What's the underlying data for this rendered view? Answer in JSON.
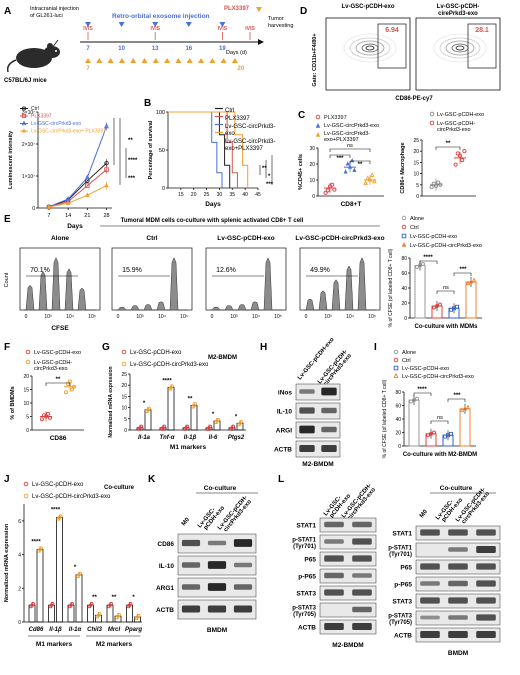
{
  "colors": {
    "ctrl": "#222222",
    "plx": "#d9534f",
    "exo": "#4a6fd6",
    "combo": "#f0a030",
    "red": "#e04040",
    "blue": "#3060d0",
    "gray": "#888888",
    "alone": "#999999",
    "orange": "#f08030"
  },
  "A": {
    "letter": "A",
    "mouse_label": "C57BL/6J mice",
    "injection_label": "Intracranial injection\nof GL261-luci",
    "exo_title": "Retro-orbital exosome injection",
    "plx_label": "PLX3397",
    "tumor_harvest": "Tumor\nharvesting",
    "days_label": "Days (d)",
    "ivis": "IVIS",
    "exo_days": [
      "7",
      "10",
      "13",
      "16",
      "19"
    ],
    "plx_days": [
      "7",
      "20"
    ],
    "chart_data": {
      "type": "line",
      "xlabel": "Days",
      "ylabel": "Luminescent intensity",
      "x": [
        7,
        14,
        21,
        28
      ],
      "xticks": [
        "7",
        "14",
        "21",
        "28"
      ],
      "yticks": [
        "0",
        "1×10⁷",
        "2×10⁷",
        "3×10⁷"
      ],
      "ylim": [
        0,
        30000000
      ],
      "series": [
        {
          "name": "Ctrl",
          "color": "#222222",
          "values": [
            300000,
            2500000,
            8500000,
            14000000
          ]
        },
        {
          "name": "PLX3397",
          "color": "#d9534f",
          "values": [
            300000,
            2000000,
            7000000,
            12000000
          ]
        },
        {
          "name": "Lv-GSC-circPrkd3-exo",
          "color": "#4a6fd6",
          "values": [
            400000,
            2800000,
            9500000,
            25500000
          ]
        },
        {
          "name": "Lv-GSC-circPrkd3-exo+ PLX3397",
          "color": "#f0a030",
          "values": [
            300000,
            1500000,
            4000000,
            7000000
          ]
        }
      ],
      "significance": [
        "**",
        "****",
        "***"
      ]
    }
  },
  "B": {
    "letter": "B",
    "chart_data": {
      "type": "line",
      "xlabel": "Days",
      "ylabel": "Percentage of survival",
      "xticks": [
        "15",
        "20",
        "25",
        "30",
        "35",
        "40",
        "45"
      ],
      "yticks": [
        "0",
        "50",
        "100"
      ],
      "xlim": [
        10,
        45
      ],
      "ylim": [
        0,
        100
      ],
      "series": [
        {
          "name": "Ctrl",
          "color": "#222222",
          "steps": [
            [
              10,
              100
            ],
            [
              30,
              100
            ],
            [
              30,
              70
            ],
            [
              32,
              70
            ],
            [
              32,
              30
            ],
            [
              34,
              30
            ],
            [
              34,
              0
            ]
          ]
        },
        {
          "name": "PLX3397",
          "color": "#d9534f",
          "steps": [
            [
              10,
              100
            ],
            [
              33,
              100
            ],
            [
              33,
              60
            ],
            [
              35,
              60
            ],
            [
              35,
              20
            ],
            [
              37,
              20
            ],
            [
              37,
              0
            ]
          ]
        },
        {
          "name": "Lv-GSC-circPrkd3-exo",
          "color": "#4a6fd6",
          "steps": [
            [
              10,
              100
            ],
            [
              27,
              100
            ],
            [
              27,
              60
            ],
            [
              29,
              60
            ],
            [
              29,
              20
            ],
            [
              31,
              20
            ],
            [
              31,
              0
            ]
          ]
        },
        {
          "name": "Lv-GSC-circPrkd3-exo+PLX3397",
          "color": "#f0a030",
          "steps": [
            [
              10,
              100
            ],
            [
              36,
              100
            ],
            [
              36,
              70
            ],
            [
              39,
              70
            ],
            [
              39,
              30
            ],
            [
              41,
              30
            ],
            [
              41,
              0
            ]
          ]
        }
      ],
      "significance": [
        "**",
        "*",
        "***"
      ]
    }
  },
  "C": {
    "letter": "C",
    "left": {
      "ylabel": "%CD45+ cells",
      "xlabel": "CD8+T",
      "yticks": [
        "0",
        "10",
        "20",
        "30"
      ],
      "ylim": [
        0,
        30
      ],
      "groups": [
        {
          "name": "PLX3397",
          "color": "#e04040",
          "mean": 5
        },
        {
          "name": "Lv-GSC-circPrkd3-exo",
          "color": "#4a6fd6",
          "mean": 18
        },
        {
          "name": "Lv-GSC-circPrkd3-exo+PLX3397",
          "color": "#f0a030",
          "mean": 10
        }
      ],
      "significance": [
        "ns",
        "***",
        "**"
      ]
    },
    "right": {
      "ylabel": "CD86+ Macrophage",
      "yticks": [
        "0",
        "5",
        "10",
        "15",
        "20",
        "25"
      ],
      "ylim": [
        0,
        25
      ],
      "groups": [
        {
          "name": "Lv-GSC-pCDH-exo",
          "color": "#888888",
          "mean": 5
        },
        {
          "name": "Lv-GSC-pCDH-circPrkd3-exo",
          "color": "#e04040",
          "mean": 17
        }
      ],
      "significance": [
        "**"
      ]
    }
  },
  "D": {
    "letter": "D",
    "panel_titles": [
      "Lv-GSC-pCDH-exo",
      "Lv-GSC-pCDH-\ncirePrkd3-exo"
    ],
    "values": [
      "6.94",
      "28.1"
    ],
    "ylabel": "Gate: CD11b+F4/80+",
    "xlabel": "CD86-PE-cy7"
  },
  "E": {
    "letter": "E",
    "header": "Tumoral MDM cells co-culture with splenic activated CD8+ T cell",
    "panels": [
      "Alone",
      "Ctrl",
      "Lv-GSC-pCDH-exo",
      "Lv-GSC-pCDH-circPrkd3-exo"
    ],
    "percents": [
      "70.1%",
      "15.9%",
      "12.6%",
      "49.9%"
    ],
    "ylabel": "Count",
    "xlabel": "CFSE",
    "xticks": [
      "0",
      "10³",
      "10⁴",
      "10⁵"
    ],
    "chart_data": {
      "type": "bar",
      "xlabel": "Co-culture with MDMs",
      "ylabel": "% of CFSE (of labeled CD8+ T cell)",
      "yticks": [
        "0",
        "20",
        "40",
        "60",
        "80"
      ],
      "ylim": [
        0,
        80
      ],
      "categories": [
        "Alone",
        "Ctrl",
        "Lv-GSC-pCDH-exo",
        "Lv-GSC-pCDH-circPrkd3-exo"
      ],
      "values": [
        70,
        16,
        13,
        48
      ],
      "colors": [
        "#999999",
        "#e04040",
        "#3060d0",
        "#f08030"
      ],
      "significance": [
        "****",
        "ns",
        "***"
      ]
    }
  },
  "F": {
    "letter": "F",
    "legend": [
      "Lv-GSC-pCDH-exo",
      "Lv-GSC-pCDH-\ncircPrkd3-exo"
    ],
    "ylabel": "% of BMDMs",
    "xlabel": "CD86",
    "yticks": [
      "0",
      "5",
      "10",
      "15",
      "20"
    ],
    "ylim": [
      0,
      20
    ],
    "groups": [
      {
        "name": "Lv-GSC-pCDH-exo",
        "color": "#e04040",
        "mean": 5
      },
      {
        "name": "Lv-GSC-pCDH-circPrkd3-exo",
        "color": "#f0a030",
        "mean": 16
      }
    ],
    "significance": [
      "**"
    ]
  },
  "G": {
    "letter": "G",
    "legend": [
      "Lv-GSC-pCDH-exo",
      "Lv-GSC-pCDH-circPrkd3-exo"
    ],
    "subtitle": "M2-BMDM",
    "chart_data": {
      "type": "bar",
      "ylabel": "Normalized mRNA expression",
      "xlabel": "M1 markers",
      "categories": [
        "Il-1a",
        "Tnf-α",
        "Il-1β",
        "Il-6",
        "Ptgs2"
      ],
      "yticks": [
        "0",
        "5",
        "10",
        "15",
        "20",
        "25"
      ],
      "ylim": [
        0,
        25
      ],
      "series": [
        {
          "name": "Lv-GSC-pCDH-exo",
          "color": "#e04040",
          "values": [
            1,
            1,
            1,
            1,
            1
          ]
        },
        {
          "name": "Lv-GSC-pCDH-circPrkd3-exo",
          "color": "#f0a030",
          "values": [
            9,
            19,
            11,
            4,
            3
          ]
        }
      ],
      "significance": [
        "*",
        "****",
        "**",
        "*",
        "*"
      ]
    }
  },
  "H": {
    "letter": "H",
    "lanes": [
      "Lv-GSC-pCDH-exo",
      "Lv-GSC-pCDH-circPrkd3-exo"
    ],
    "rows": [
      "iNos",
      "IL-10",
      "ARGI",
      "ACTB"
    ],
    "caption": "M2-BMDM"
  },
  "I": {
    "letter": "I",
    "legend": [
      "Alone",
      "Ctrl",
      "Lv-GSC-pCDH-exo",
      "Lv-GSC-pCDH-circPrkd3-exo"
    ],
    "chart_data": {
      "type": "bar",
      "xlabel": "Co-culture with M2-BMDM",
      "ylabel": "% of CFSE (of labeled CD8+ T cell)",
      "yticks": [
        "0",
        "20",
        "40",
        "60",
        "80"
      ],
      "ylim": [
        0,
        80
      ],
      "categories": [
        "Alone",
        "Ctrl",
        "Lv-GSC-pCDH-exo",
        "Lv-GSC-pCDH-circPrkd3-exo"
      ],
      "values": [
        68,
        18,
        16,
        55
      ],
      "colors": [
        "#999999",
        "#e04040",
        "#3060d0",
        "#f08030"
      ],
      "significance": [
        "****",
        "ns",
        "***"
      ]
    }
  },
  "J": {
    "letter": "J",
    "legend": [
      "Lv-GSC-pCDH-exo",
      "Lv-GSC-pCDH-circPrkd3-exo"
    ],
    "subtitle": "Co-culture",
    "chart_data": {
      "type": "bar",
      "ylabel": "Normalized mRNA expression",
      "categories": [
        "Cd86",
        "Il-1β",
        "Il-1α",
        "Chil3",
        "Mrcl",
        "Pparg"
      ],
      "groups": [
        "M1 markers",
        "M2 markers"
      ],
      "yticks": [
        "0",
        "2",
        "4",
        "6"
      ],
      "ylim": [
        0,
        7
      ],
      "series": [
        {
          "name": "Lv-GSC-pCDH-exo",
          "color": "#e04040",
          "values": [
            1,
            1,
            1,
            1,
            1,
            1
          ]
        },
        {
          "name": "Lv-GSC-pCDH-circPrkd3-exo",
          "color": "#f0a030",
          "values": [
            4.3,
            6.2,
            2.8,
            0.4,
            0.35,
            0.3
          ]
        }
      ],
      "significance": [
        "****",
        "****",
        "*",
        "**",
        "**",
        "*"
      ]
    }
  },
  "K": {
    "letter": "K",
    "header": "Co-culture",
    "lanes": [
      "M0",
      "Lv-GSC-pCDH-exo",
      "Lv-GSC-pCDH-circPrkd3-exo"
    ],
    "rows": [
      "CD86",
      "IL-10",
      "ARG1",
      "ACTB"
    ],
    "caption": "BMDM"
  },
  "L": {
    "letter": "L",
    "left": {
      "lanes": [
        "Lv-GSC-pCDH-exo",
        "Lv-GSC-pCDH-circPrkd3-exo"
      ],
      "rows": [
        "STAT1",
        "p-STAT1 (Tyr701)",
        "P65",
        "p-P65",
        "STAT3",
        "p-STAT3 (Tyr705)",
        "ACTB"
      ],
      "caption": "M2-BMDM"
    },
    "right": {
      "header": "Co-culture",
      "lanes": [
        "M0",
        "Lv-GSC-pCDH-exo",
        "Lv-GSC-pCDH-circPrkd3-exo"
      ],
      "rows": [
        "STAT1",
        "p-STAT1 (Tyr701)",
        "P65",
        "p-P65",
        "STAT3",
        "p-STAT3 (Tyr705)",
        "ACTB"
      ],
      "caption": "BMDM"
    }
  }
}
